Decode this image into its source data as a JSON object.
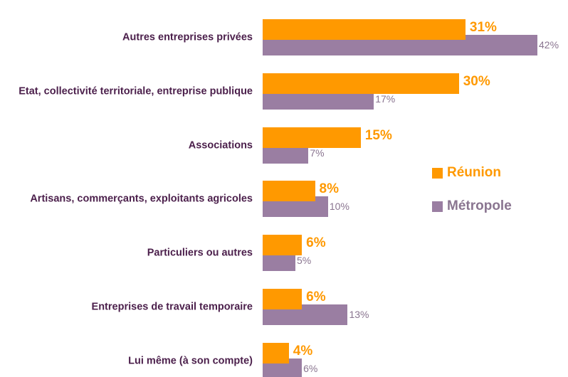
{
  "chart_data": {
    "type": "bar",
    "orientation": "horizontal",
    "categories": [
      "Autres entreprises privées",
      "Etat, collectivité territoriale, entreprise publique",
      "Associations",
      "Artisans, commerçants, exploitants agricoles",
      "Particuliers ou autres",
      "Entreprises de travail temporaire",
      "Lui même (à son compte)"
    ],
    "series": [
      {
        "name": "Réunion",
        "color": "#ff9900",
        "values": [
          31,
          30,
          15,
          8,
          6,
          6,
          4
        ],
        "value_labels": [
          "31%",
          "30%",
          "15%",
          "8%",
          "6%",
          "6%",
          "4%"
        ]
      },
      {
        "name": "Métropole",
        "color": "#9a7ea2",
        "values": [
          42,
          17,
          7,
          10,
          5,
          13,
          6
        ],
        "value_labels": [
          "42%",
          "17%",
          "7%",
          "10%",
          "5%",
          "13%",
          "6%"
        ]
      }
    ],
    "legend": "right"
  }
}
